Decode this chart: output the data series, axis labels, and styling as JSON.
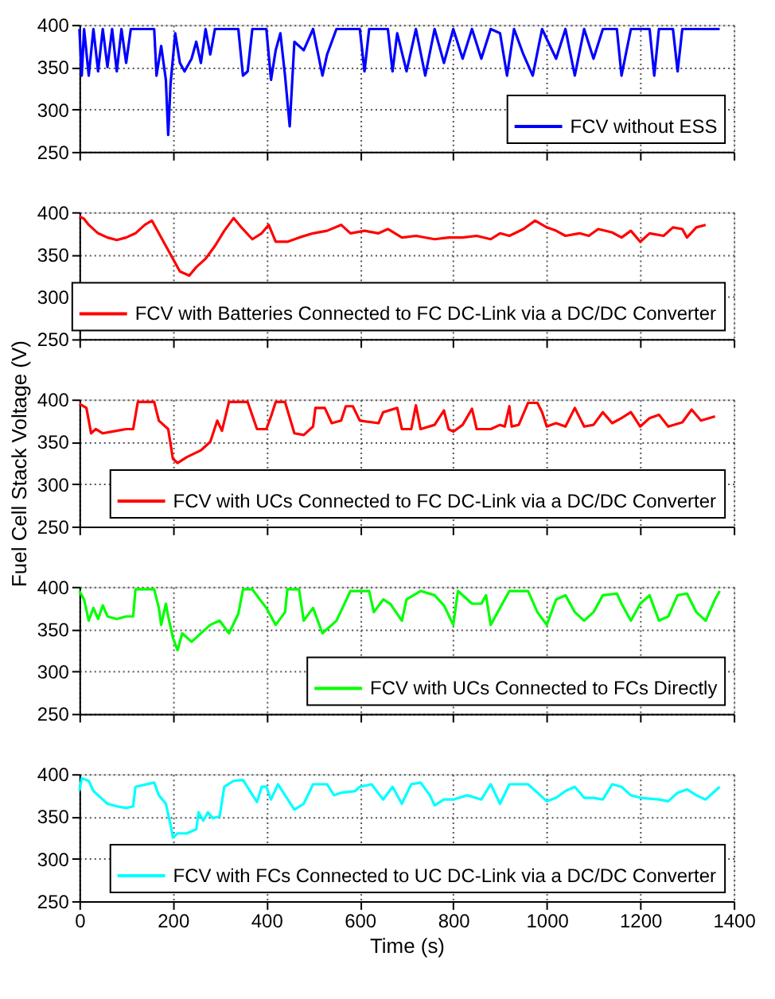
{
  "chart_data": [
    {
      "type": "line",
      "xlim": [
        0,
        1400
      ],
      "xticks": [
        0,
        200,
        400,
        600,
        800,
        1000,
        1200,
        1400
      ],
      "ylim": [
        250,
        400
      ],
      "yticks": [
        250,
        300,
        350,
        400
      ],
      "grid": true,
      "legend": "bottom right",
      "tick_labels": "y",
      "series": [
        {
          "name": "FCV without ESS",
          "color": "#0000ff",
          "x": [
            0,
            5,
            10,
            20,
            30,
            40,
            50,
            60,
            70,
            80,
            90,
            100,
            110,
            160,
            165,
            175,
            185,
            190,
            195,
            205,
            215,
            225,
            240,
            250,
            260,
            270,
            280,
            290,
            340,
            350,
            360,
            370,
            400,
            410,
            420,
            430,
            440,
            450,
            460,
            480,
            500,
            520,
            530,
            550,
            600,
            610,
            620,
            660,
            670,
            680,
            700,
            720,
            740,
            760,
            780,
            800,
            820,
            840,
            860,
            880,
            900,
            915,
            930,
            950,
            970,
            990,
            1020,
            1040,
            1060,
            1080,
            1100,
            1120,
            1150,
            1160,
            1180,
            1220,
            1230,
            1240,
            1270,
            1280,
            1290,
            1370
          ],
          "values": [
            395,
            340,
            395,
            340,
            395,
            345,
            395,
            350,
            395,
            345,
            395,
            355,
            395,
            395,
            340,
            375,
            335,
            270,
            330,
            390,
            355,
            345,
            360,
            380,
            355,
            395,
            365,
            395,
            395,
            340,
            345,
            395,
            395,
            335,
            370,
            390,
            340,
            280,
            380,
            370,
            395,
            340,
            365,
            395,
            395,
            345,
            395,
            395,
            345,
            390,
            345,
            395,
            340,
            395,
            355,
            395,
            360,
            395,
            360,
            395,
            390,
            340,
            395,
            365,
            340,
            395,
            360,
            395,
            340,
            395,
            360,
            395,
            395,
            340,
            395,
            395,
            340,
            395,
            395,
            345,
            395,
            395
          ]
        }
      ]
    },
    {
      "type": "line",
      "xlim": [
        0,
        1400
      ],
      "xticks": [
        0,
        200,
        400,
        600,
        800,
        1000,
        1200,
        1400
      ],
      "ylim": [
        250,
        400
      ],
      "yticks": [
        250,
        300,
        350,
        400
      ],
      "grid": true,
      "legend": "bottom right",
      "tick_labels": "y",
      "series": [
        {
          "name": "FCV with Batteries Connected to FC DC-Link via a DC/DC Converter",
          "color": "#ff0000",
          "x": [
            0,
            10,
            20,
            40,
            60,
            80,
            100,
            120,
            140,
            155,
            170,
            185,
            200,
            215,
            235,
            250,
            270,
            290,
            310,
            330,
            345,
            370,
            390,
            405,
            420,
            445,
            470,
            500,
            530,
            560,
            580,
            610,
            640,
            660,
            690,
            720,
            760,
            790,
            820,
            850,
            880,
            900,
            920,
            950,
            975,
            1000,
            1020,
            1040,
            1070,
            1090,
            1110,
            1140,
            1160,
            1180,
            1200,
            1220,
            1250,
            1270,
            1290,
            1300,
            1320,
            1340
          ],
          "values": [
            395,
            392,
            385,
            375,
            370,
            367,
            370,
            375,
            385,
            390,
            375,
            360,
            345,
            330,
            325,
            335,
            345,
            360,
            378,
            393,
            383,
            368,
            375,
            385,
            365,
            365,
            370,
            375,
            378,
            385,
            375,
            378,
            375,
            380,
            370,
            372,
            368,
            370,
            370,
            372,
            368,
            375,
            372,
            380,
            390,
            382,
            378,
            372,
            375,
            372,
            380,
            376,
            370,
            378,
            365,
            375,
            372,
            382,
            380,
            370,
            382,
            385
          ]
        }
      ]
    },
    {
      "type": "line",
      "xlim": [
        0,
        1400
      ],
      "xticks": [
        0,
        200,
        400,
        600,
        800,
        1000,
        1200,
        1400
      ],
      "ylim": [
        250,
        400
      ],
      "yticks": [
        250,
        300,
        350,
        400
      ],
      "grid": true,
      "legend": "bottom right",
      "tick_labels": "y",
      "ylabel": "Fuel Cell Stack Voltage (V)",
      "series": [
        {
          "name": "FCV with UCs Connected to FC DC-Link via a DC/DC Converter",
          "color": "#ff0000",
          "x": [
            0,
            15,
            25,
            35,
            50,
            70,
            100,
            115,
            125,
            160,
            170,
            190,
            200,
            210,
            230,
            260,
            280,
            295,
            305,
            320,
            360,
            380,
            400,
            410,
            420,
            440,
            460,
            480,
            500,
            505,
            525,
            540,
            560,
            570,
            585,
            600,
            640,
            650,
            680,
            690,
            710,
            720,
            730,
            760,
            780,
            790,
            800,
            820,
            840,
            850,
            880,
            900,
            910,
            920,
            925,
            940,
            960,
            980,
            990,
            1000,
            1020,
            1040,
            1060,
            1080,
            1100,
            1120,
            1140,
            1160,
            1180,
            1200,
            1220,
            1240,
            1260,
            1290,
            1310,
            1330,
            1360
          ],
          "values": [
            395,
            390,
            360,
            365,
            360,
            362,
            365,
            365,
            397,
            397,
            375,
            365,
            330,
            325,
            332,
            340,
            350,
            375,
            363,
            397,
            397,
            365,
            365,
            380,
            397,
            397,
            360,
            358,
            368,
            390,
            390,
            372,
            375,
            392,
            392,
            375,
            372,
            385,
            390,
            365,
            365,
            393,
            365,
            370,
            387,
            365,
            362,
            370,
            389,
            365,
            365,
            370,
            368,
            392,
            368,
            370,
            396,
            396,
            385,
            368,
            372,
            368,
            390,
            368,
            370,
            385,
            372,
            378,
            385,
            368,
            378,
            382,
            368,
            373,
            388,
            375,
            380
          ]
        }
      ]
    },
    {
      "type": "line",
      "xlim": [
        0,
        1400
      ],
      "xticks": [
        0,
        200,
        400,
        600,
        800,
        1000,
        1200,
        1400
      ],
      "ylim": [
        250,
        400
      ],
      "yticks": [
        250,
        300,
        350,
        400
      ],
      "grid": true,
      "legend": "bottom right",
      "tick_labels": "y",
      "series": [
        {
          "name": "FCV with UCs Connected to FCs Directly",
          "color": "#00ff00",
          "x": [
            0,
            10,
            20,
            30,
            40,
            50,
            60,
            80,
            100,
            115,
            120,
            160,
            170,
            175,
            185,
            190,
            200,
            210,
            220,
            240,
            260,
            280,
            300,
            320,
            340,
            350,
            370,
            400,
            420,
            440,
            445,
            470,
            480,
            500,
            520,
            550,
            580,
            620,
            630,
            650,
            665,
            690,
            700,
            730,
            760,
            780,
            800,
            810,
            840,
            860,
            870,
            880,
            900,
            920,
            960,
            980,
            1000,
            1020,
            1040,
            1060,
            1080,
            1100,
            1120,
            1150,
            1160,
            1180,
            1200,
            1220,
            1240,
            1260,
            1280,
            1300,
            1320,
            1340,
            1360,
            1370
          ],
          "values": [
            395,
            385,
            360,
            375,
            362,
            378,
            365,
            362,
            365,
            365,
            397,
            397,
            375,
            355,
            380,
            365,
            340,
            325,
            345,
            335,
            345,
            355,
            360,
            345,
            368,
            397,
            397,
            375,
            355,
            370,
            397,
            397,
            360,
            375,
            345,
            360,
            395,
            395,
            370,
            385,
            380,
            360,
            385,
            395,
            390,
            378,
            355,
            395,
            380,
            380,
            390,
            355,
            375,
            395,
            395,
            370,
            355,
            385,
            390,
            370,
            360,
            370,
            390,
            392,
            380,
            360,
            380,
            390,
            360,
            365,
            390,
            392,
            370,
            360,
            385,
            395
          ]
        }
      ]
    },
    {
      "type": "line",
      "xlim": [
        0,
        1400
      ],
      "xticks": [
        0,
        200,
        400,
        600,
        800,
        1000,
        1200,
        1400
      ],
      "ylim": [
        250,
        400
      ],
      "yticks": [
        250,
        300,
        350,
        400
      ],
      "grid": true,
      "legend": "bottom right",
      "xlabel": "Time (s)",
      "series": [
        {
          "name": "FCV with FCs Connected to UC DC-Link via a DC/DC Converter",
          "color": "#00ffff",
          "x": [
            0,
            5,
            20,
            30,
            40,
            60,
            80,
            100,
            115,
            120,
            160,
            170,
            185,
            195,
            200,
            210,
            230,
            250,
            255,
            265,
            275,
            285,
            300,
            310,
            330,
            350,
            380,
            390,
            400,
            410,
            425,
            440,
            460,
            480,
            500,
            530,
            545,
            560,
            590,
            600,
            625,
            650,
            670,
            690,
            710,
            730,
            750,
            760,
            780,
            800,
            830,
            860,
            880,
            900,
            920,
            960,
            980,
            1000,
            1020,
            1040,
            1060,
            1080,
            1100,
            1120,
            1140,
            1160,
            1180,
            1200,
            1240,
            1260,
            1280,
            1300,
            1320,
            1340,
            1360,
            1370
          ],
          "values": [
            380,
            395,
            392,
            380,
            375,
            365,
            362,
            360,
            362,
            385,
            390,
            375,
            365,
            340,
            325,
            330,
            330,
            335,
            355,
            345,
            355,
            348,
            350,
            385,
            392,
            393,
            367,
            385,
            385,
            370,
            388,
            375,
            358,
            365,
            388,
            388,
            375,
            378,
            380,
            385,
            388,
            370,
            385,
            365,
            388,
            390,
            375,
            363,
            370,
            370,
            375,
            370,
            388,
            365,
            388,
            388,
            378,
            368,
            372,
            380,
            385,
            372,
            372,
            370,
            388,
            385,
            375,
            372,
            370,
            368,
            378,
            382,
            375,
            370,
            380,
            385
          ]
        }
      ]
    }
  ]
}
